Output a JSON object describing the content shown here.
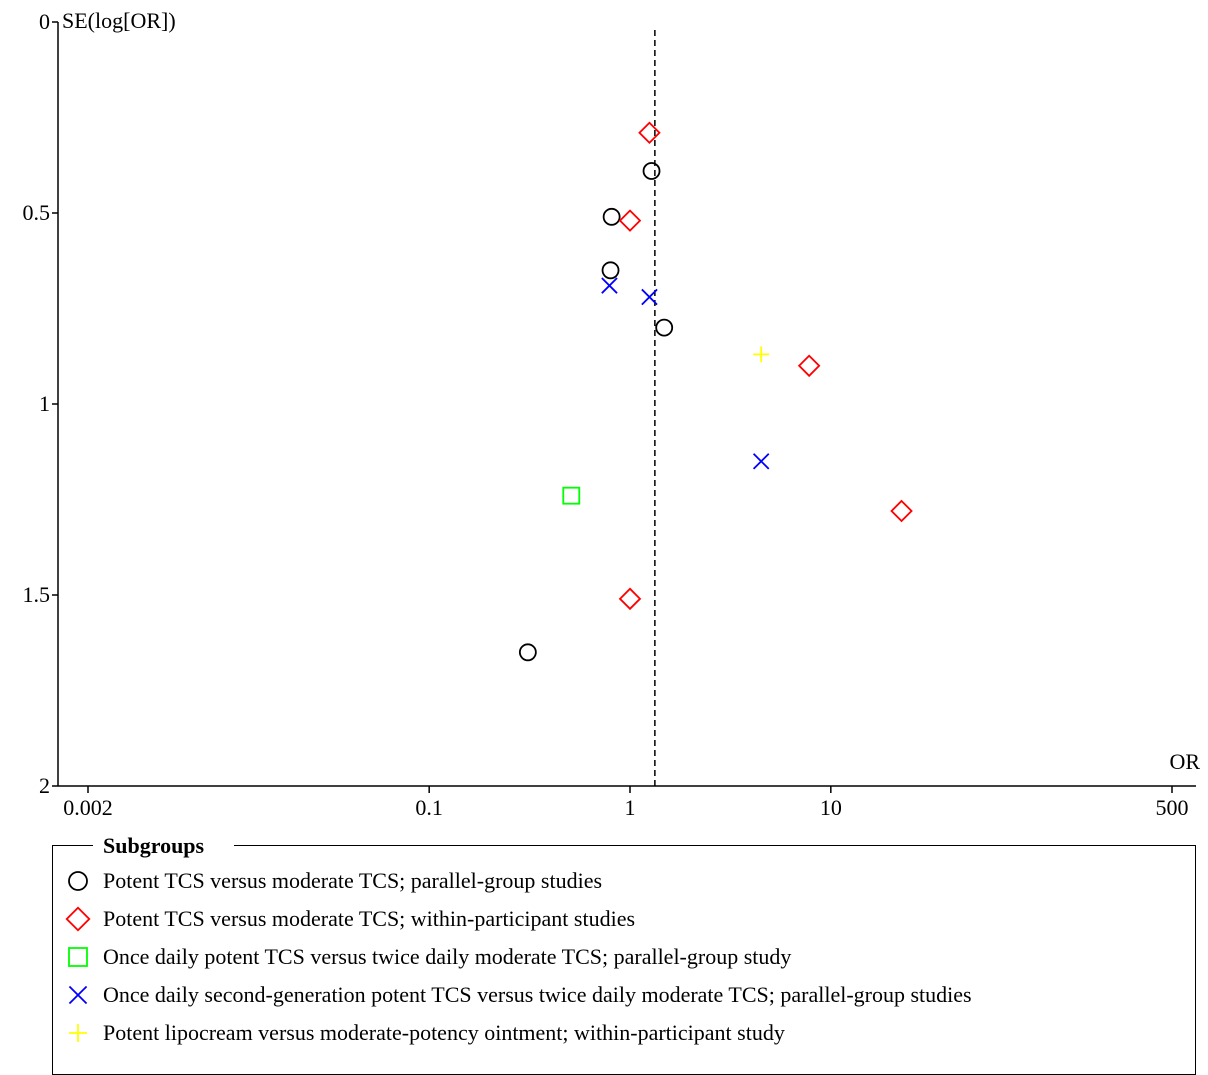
{
  "chart_data": {
    "type": "scatter",
    "title": "",
    "xlabel": "OR",
    "ylabel": "SE(log[OR])",
    "x_scale": "log",
    "xlim": [
      0.002,
      500
    ],
    "ylim": [
      0,
      2
    ],
    "y_inverted": true,
    "x_ticks": [
      "0.002",
      "0.1",
      "1",
      "10",
      "500"
    ],
    "x_tick_values": [
      0.002,
      0.1,
      1,
      10,
      500
    ],
    "y_ticks": [
      "0",
      "0.5",
      "1",
      "1.5",
      "2"
    ],
    "y_tick_values": [
      0,
      0.5,
      1,
      1.5,
      2
    ],
    "reference_line_or": 1.33,
    "legend_title": "Subgroups",
    "series": [
      {
        "name": "Potent TCS versus moderate TCS; parallel-group studies",
        "marker": "circle",
        "color": "#000000",
        "points": [
          [
            1.28,
            0.39
          ],
          [
            0.81,
            0.51
          ],
          [
            0.8,
            0.65
          ],
          [
            1.48,
            0.8
          ],
          [
            0.31,
            1.65
          ]
        ]
      },
      {
        "name": "Potent TCS versus moderate TCS; within-participant studies",
        "marker": "diamond",
        "color": "#ff0000",
        "points": [
          [
            1.25,
            0.29
          ],
          [
            1.0,
            0.52
          ],
          [
            7.8,
            0.9
          ],
          [
            22.5,
            1.28
          ],
          [
            1.0,
            1.51
          ]
        ]
      },
      {
        "name": "Once daily potent TCS versus twice daily moderate TCS; parallel-group study",
        "marker": "square",
        "color": "#00ff00",
        "points": [
          [
            0.51,
            1.24
          ]
        ]
      },
      {
        "name": "Once daily second-generation potent TCS versus twice daily moderate TCS; parallel-group studies",
        "marker": "x",
        "color": "#0000ff",
        "points": [
          [
            0.79,
            0.69
          ],
          [
            1.25,
            0.72
          ],
          [
            4.5,
            1.15
          ]
        ]
      },
      {
        "name": "Potent lipocream versus moderate-potency ointment; within-participant study",
        "marker": "plus",
        "color": "#ffff00",
        "points": [
          [
            4.5,
            0.87
          ]
        ]
      }
    ]
  }
}
